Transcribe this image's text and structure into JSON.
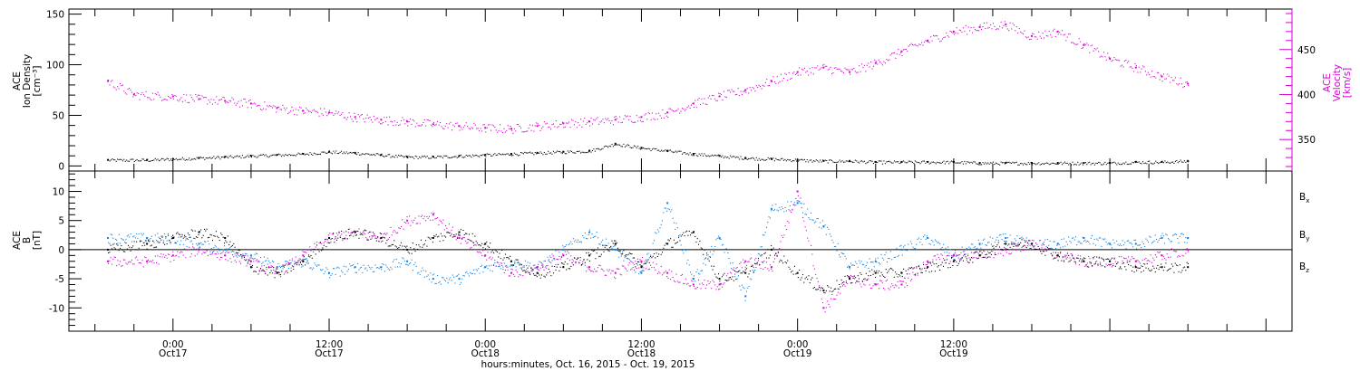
{
  "chart_data": [
    {
      "type": "scatter",
      "panel": "ion-density-velocity",
      "left_axis": {
        "label_lines": [
          "ACE",
          "Ion Density",
          "[cm⁻³]"
        ],
        "ylim": [
          -5,
          155
        ],
        "ticks": [
          0,
          50,
          100,
          150
        ],
        "color": "#000000"
      },
      "right_axis": {
        "label_lines": [
          "ACE",
          "Velocity",
          "[km/s]"
        ],
        "ylim": [
          315,
          495
        ],
        "ticks": [
          350,
          400,
          450
        ],
        "color": "#d400d4"
      },
      "series": [
        {
          "axis": "left",
          "color": "#000000",
          "x": [
            -5,
            -2,
            0,
            2,
            4,
            6,
            8,
            10,
            12,
            14,
            16,
            18,
            20,
            22,
            24,
            26,
            28,
            30,
            32,
            34,
            36,
            38,
            40,
            42,
            44,
            46,
            48,
            50,
            52,
            54,
            56,
            58,
            60,
            62,
            64,
            66,
            68,
            70,
            72,
            74,
            76,
            78
          ],
          "y": [
            6,
            6,
            7,
            8,
            9,
            10,
            11,
            12,
            14,
            13,
            11,
            9,
            9,
            10,
            11,
            12,
            13,
            14,
            15,
            22,
            18,
            15,
            12,
            10,
            8,
            7,
            6,
            5,
            5,
            4,
            4,
            4,
            4,
            3,
            3,
            3,
            3,
            3,
            3,
            4,
            4,
            5
          ]
        },
        {
          "axis": "right",
          "color": "#d400d4",
          "x": [
            -5,
            -3,
            0,
            2,
            4,
            6,
            8,
            10,
            12,
            14,
            16,
            18,
            20,
            22,
            24,
            26,
            28,
            30,
            32,
            34,
            36,
            38,
            40,
            42,
            44,
            46,
            48,
            50,
            52,
            54,
            56,
            58,
            60,
            62,
            64,
            66,
            68,
            70,
            72,
            74,
            76,
            78
          ],
          "y": [
            415,
            400,
            398,
            395,
            393,
            390,
            385,
            382,
            380,
            375,
            372,
            370,
            367,
            365,
            363,
            362,
            365,
            368,
            370,
            372,
            375,
            380,
            390,
            398,
            405,
            415,
            425,
            430,
            425,
            435,
            448,
            460,
            470,
            475,
            478,
            465,
            470,
            455,
            440,
            430,
            420,
            412
          ]
        }
      ]
    },
    {
      "type": "scatter",
      "panel": "magnetic-field",
      "left_axis": {
        "label_lines": [
          "ACE",
          "B",
          "[nT]"
        ],
        "ylim": [
          -14,
          13.5
        ],
        "ticks": [
          -10,
          -5,
          0,
          5,
          10
        ],
        "color": "#000000"
      },
      "legend": [
        "Bx",
        "By",
        "Bz"
      ],
      "series": [
        {
          "name": "Bx",
          "color": "#000000",
          "x": [
            -5,
            -2,
            0,
            2,
            4,
            6,
            8,
            10,
            12,
            14,
            16,
            18,
            20,
            22,
            24,
            26,
            28,
            30,
            32,
            34,
            36,
            38,
            40,
            42,
            44,
            46,
            48,
            50,
            52,
            54,
            56,
            58,
            60,
            62,
            64,
            66,
            68,
            70,
            72,
            74,
            76,
            78
          ],
          "y": [
            0,
            1,
            2,
            3,
            2,
            -3,
            -4,
            -2,
            2,
            3,
            2,
            0,
            2,
            3,
            1,
            -2,
            -4,
            -3,
            -1,
            1,
            -3,
            1,
            3,
            -5,
            -4,
            0,
            -4,
            -7,
            -5,
            -4,
            -4,
            -3,
            -2,
            -1,
            1,
            1,
            -1,
            -2,
            -2,
            -3,
            -3,
            -3
          ]
        },
        {
          "name": "By",
          "color": "#0a7fe0",
          "x": [
            -5,
            -2,
            0,
            2,
            4,
            6,
            8,
            10,
            12,
            14,
            16,
            18,
            20,
            22,
            24,
            26,
            28,
            30,
            32,
            34,
            36,
            38,
            40,
            42,
            44,
            46,
            48,
            50,
            52,
            54,
            56,
            58,
            60,
            62,
            64,
            66,
            68,
            70,
            72,
            74,
            76,
            78
          ],
          "y": [
            2,
            2,
            2,
            1,
            0,
            -1,
            -3,
            -2,
            -4,
            -3,
            -3,
            -2,
            -5,
            -5,
            -3,
            -2,
            -3,
            0,
            3,
            0,
            -4,
            8,
            -5,
            2,
            -8,
            7,
            8,
            4,
            -3,
            -2,
            0,
            2,
            -1,
            1,
            2,
            1,
            1,
            2,
            1,
            1,
            2,
            2
          ]
        },
        {
          "name": "Bz",
          "color": "#d400d4",
          "x": [
            -5,
            -2,
            0,
            2,
            4,
            6,
            8,
            10,
            12,
            14,
            16,
            18,
            20,
            22,
            24,
            26,
            28,
            30,
            32,
            34,
            36,
            38,
            40,
            42,
            44,
            46,
            48,
            50,
            52,
            54,
            56,
            58,
            60,
            62,
            64,
            66,
            68,
            70,
            72,
            74,
            76,
            78
          ],
          "y": [
            -2,
            -2,
            -1,
            0,
            -1,
            -2,
            -4,
            -1,
            2,
            3,
            2,
            5,
            6,
            2,
            -1,
            -4,
            -3,
            -1,
            -3,
            -4,
            -2,
            -4,
            -6,
            -6,
            -2,
            -3,
            10,
            -10,
            -5,
            -6,
            -6,
            -2,
            -1,
            -1,
            0,
            1,
            -1,
            -2,
            -2,
            -2,
            -1,
            0
          ]
        }
      ]
    }
  ],
  "x_axis": {
    "range_hours": [
      -8,
      86
    ],
    "tick_labels": [
      {
        "hour": 0,
        "lines": [
          "0:00",
          "Oct17"
        ]
      },
      {
        "hour": 12,
        "lines": [
          "12:00",
          "Oct17"
        ]
      },
      {
        "hour": 24,
        "lines": [
          "0:00",
          "Oct18"
        ]
      },
      {
        "hour": 36,
        "lines": [
          "12:00",
          "Oct18"
        ]
      },
      {
        "hour": 48,
        "lines": [
          "0:00",
          "Oct19"
        ]
      },
      {
        "hour": 60,
        "lines": [
          "12:00",
          "Oct19"
        ]
      }
    ],
    "title": "hours:minutes, Oct. 16, 2015 - Oct. 19, 2015"
  }
}
